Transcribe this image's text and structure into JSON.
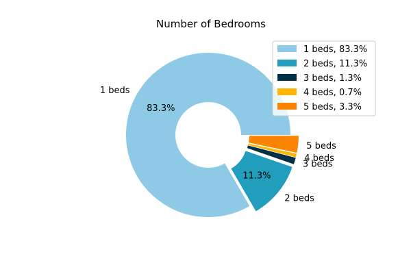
{
  "chart_data": {
    "type": "pie",
    "variant": "donut",
    "title": "Number of Bedrooms",
    "start_angle_deg": 0,
    "direction": "counterclockwise",
    "slices": [
      {
        "label": "1 beds",
        "value": 83.3,
        "color": "#8ecae6",
        "pct_label": "83.3%",
        "legend": "1 beds, 83.3%",
        "explode": 0
      },
      {
        "label": "2 beds",
        "value": 11.3,
        "color": "#219ebc",
        "pct_label": "11.3%",
        "legend": "2 beds, 11.3%",
        "explode": 0.1
      },
      {
        "label": "3 beds",
        "value": 1.3,
        "color": "#023047",
        "pct_label": "",
        "legend": "3 beds, 1.3%",
        "explode": 0.1
      },
      {
        "label": "4 beds",
        "value": 0.7,
        "color": "#ffb703",
        "pct_label": "",
        "legend": "4 beds, 0.7%",
        "explode": 0.1
      },
      {
        "label": "5 beds",
        "value": 3.3,
        "color": "#fb8500",
        "pct_label": "",
        "legend": "5 beds, 3.3%",
        "explode": 0.1
      }
    ],
    "legend_position": "top-right"
  }
}
